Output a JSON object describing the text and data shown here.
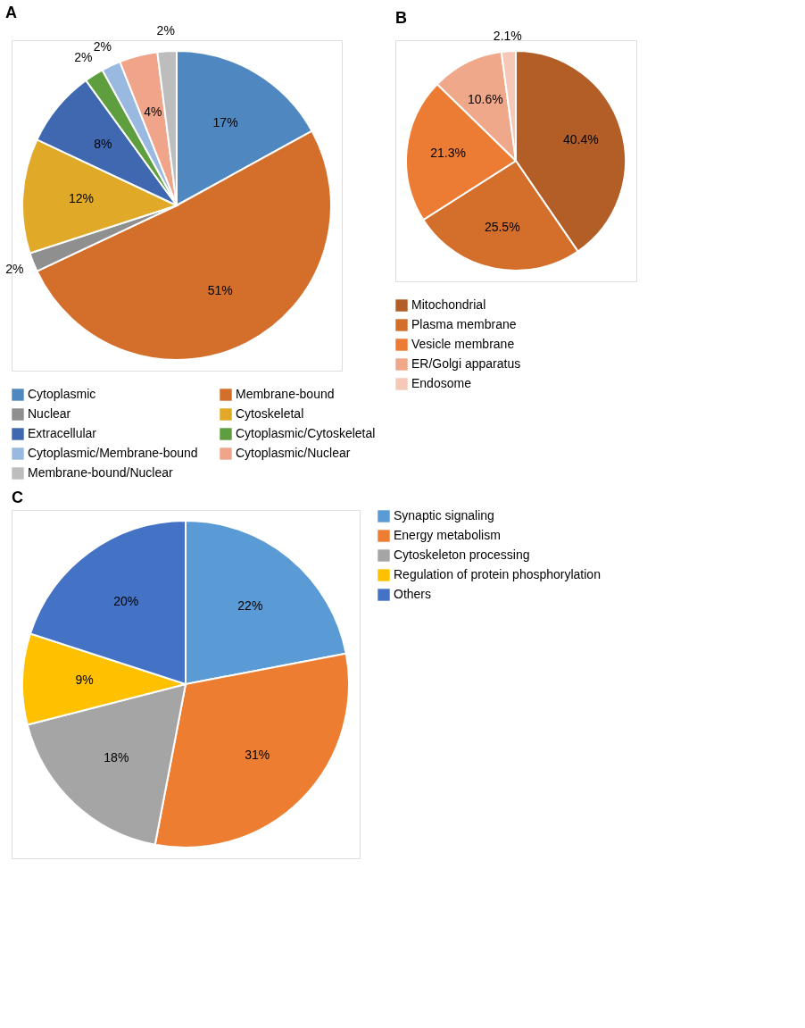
{
  "chart_data": [
    {
      "type": "pie",
      "title": "A",
      "legend": "bottom",
      "categories": [
        "Cytoplasmic",
        "Membrane-bound",
        "Nuclear",
        "Cytoskeletal",
        "Extracellular",
        "Cytoplasmic/Cytoskeletal",
        "Cytoplasmic/Membrane-bound",
        "Cytoplasmic/Nuclear",
        "Membrane-bound/Nuclear"
      ],
      "values": [
        17,
        51,
        2,
        12,
        8,
        2,
        2,
        4,
        2
      ],
      "value_labels": [
        "17%",
        "51%",
        "2%",
        "12%",
        "8%",
        "2%",
        "2%",
        "4%",
        "2%"
      ],
      "colors": [
        "#4f88c0",
        "#d46e2b",
        "#8f8f8f",
        "#e0aa28",
        "#3f68b0",
        "#5f9e3f",
        "#9ab9e0",
        "#f0a58a",
        "#bdbdbd"
      ]
    },
    {
      "type": "pie",
      "title": "B",
      "legend": "bottom",
      "categories": [
        "Mitochondrial",
        "Plasma membrane",
        "Vesicle membrane",
        "ER/Golgi apparatus",
        "Endosome"
      ],
      "values": [
        40.4,
        25.5,
        21.3,
        10.6,
        2.1
      ],
      "value_labels": [
        "40.4%",
        "25.5%",
        "21.3%",
        "10.6%",
        "2.1%"
      ],
      "colors": [
        "#b35e27",
        "#d46e2b",
        "#ec7c33",
        "#efa88a",
        "#f5c8b8"
      ]
    },
    {
      "type": "pie",
      "title": "C",
      "legend": "right",
      "categories": [
        "Synaptic signaling",
        "Energy metabolism",
        "Cytoskeleton processing",
        "Regulation of protein phosphorylation",
        "Others"
      ],
      "values": [
        22,
        31,
        18,
        9,
        20
      ],
      "value_labels": [
        "22%",
        "31%",
        "18%",
        "9%",
        "20%"
      ],
      "colors": [
        "#5b9bd5",
        "#ed7d31",
        "#a5a5a5",
        "#ffc000",
        "#4472c4"
      ]
    }
  ]
}
